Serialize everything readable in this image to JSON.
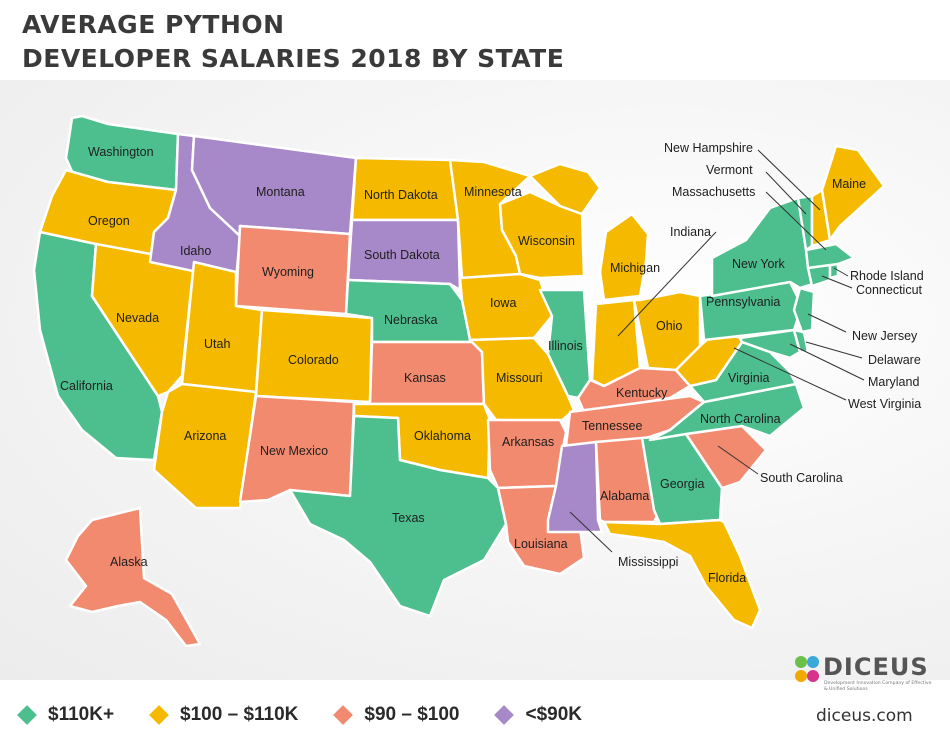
{
  "title": {
    "line1": "AVERAGE PYTHON",
    "line2": "DEVELOPER SALARIES 2018 BY STATE"
  },
  "colors": {
    "high": "#4dbf8e",
    "mid": "#f5b900",
    "low": "#f28a6f",
    "lowest": "#a788c8"
  },
  "legend": [
    {
      "label": "$110K+",
      "color": "#4dbf8e"
    },
    {
      "label": "$100 – $110K",
      "color": "#f5b900"
    },
    {
      "label": "$90 – $100",
      "color": "#f28a6f"
    },
    {
      "label": "<$90K",
      "color": "#a788c8"
    }
  ],
  "states": {
    "washington": "Washington",
    "oregon": "Oregon",
    "california": "California",
    "nevada": "Nevada",
    "idaho": "Idaho",
    "montana": "Montana",
    "wyoming": "Wyoming",
    "utah": "Utah",
    "arizona": "Arizona",
    "colorado": "Colorado",
    "new_mexico": "New Mexico",
    "north_dakota": "North Dakota",
    "south_dakota": "South Dakota",
    "nebraska": "Nebraska",
    "kansas": "Kansas",
    "oklahoma": "Oklahoma",
    "texas": "Texas",
    "minnesota": "Minnesota",
    "iowa": "Iowa",
    "missouri": "Missouri",
    "arkansas": "Arkansas",
    "louisiana": "Louisiana",
    "wisconsin": "Wisconsin",
    "illinois": "Illinois",
    "michigan": "Michigan",
    "indiana": "Indiana",
    "ohio": "Ohio",
    "kentucky": "Kentucky",
    "tennessee": "Tennessee",
    "mississippi": "Mississippi",
    "alabama": "Alabama",
    "georgia": "Georgia",
    "florida": "Florida",
    "south_carolina": "South Carolina",
    "north_carolina": "North Carolina",
    "virginia": "Virginia",
    "west_virginia": "West Virginia",
    "pennsylvania": "Pennsylvania",
    "new_york": "New York",
    "maryland": "Maryland",
    "delaware": "Delaware",
    "new_jersey": "New Jersey",
    "connecticut": "Connecticut",
    "rhode_island": "Rhode Island",
    "massachusetts": "Massachusetts",
    "vermont": "Vermont",
    "new_hampshire": "New Hampshire",
    "maine": "Maine",
    "alaska": "Alaska"
  },
  "brand": {
    "name": "DICEUS",
    "tagline": "Development Innovation Company of Effective & Unified Solutions",
    "url": "diceus.com"
  }
}
